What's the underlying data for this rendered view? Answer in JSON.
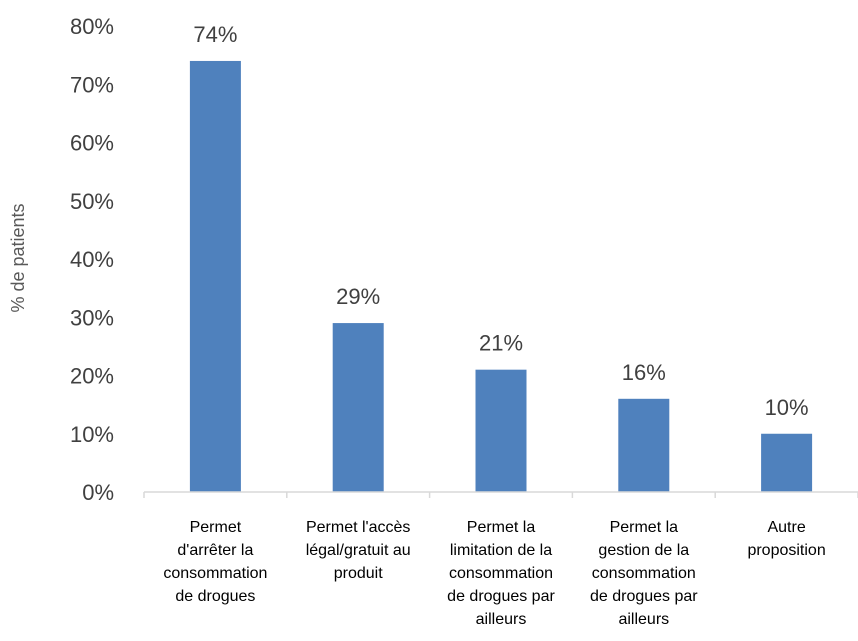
{
  "chart_data": {
    "type": "bar",
    "categories": [
      [
        "Permet",
        "d'arrêter la",
        "consommation",
        "de drogues"
      ],
      [
        "Permet l'accès",
        "légal/gratuit au",
        "produit"
      ],
      [
        "Permet la",
        "limitation de la",
        "consommation",
        "de drogues par",
        "ailleurs"
      ],
      [
        "Permet la",
        "gestion de la",
        "consommation",
        "de drogues par",
        "ailleurs"
      ],
      [
        "Autre",
        "proposition"
      ]
    ],
    "values": [
      74,
      29,
      21,
      16,
      10
    ],
    "data_labels": [
      "74%",
      "29%",
      "21%",
      "16%",
      "10%"
    ],
    "ylabel": "% de patients",
    "ylim": [
      0,
      80
    ],
    "yticks": [
      0,
      10,
      20,
      30,
      40,
      50,
      60,
      70,
      80
    ],
    "ytick_labels": [
      "0%",
      "10%",
      "20%",
      "30%",
      "40%",
      "50%",
      "60%",
      "70%",
      "80%"
    ],
    "grid": false,
    "bar_color": "#4F81BD",
    "axis_color": "#D9D9D9"
  }
}
